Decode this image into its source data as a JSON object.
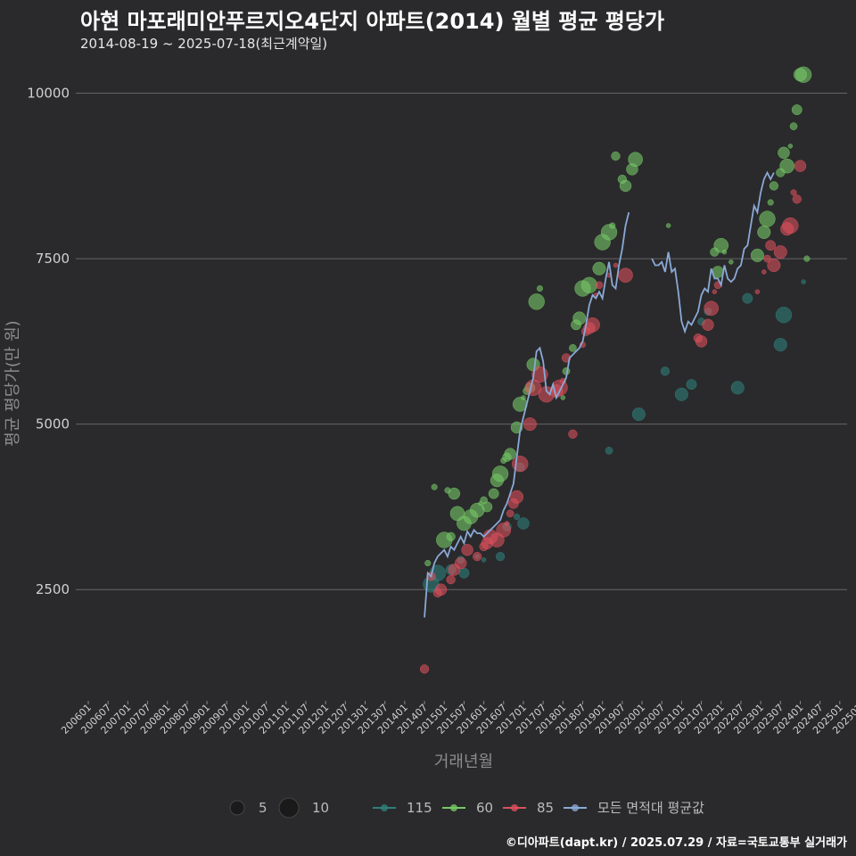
{
  "title": "아현 마포래미안푸르지오4단지 아파트(2014) 월별 평균 평당가",
  "subtitle": "2014-08-19 ~ 2025-07-18(최근계약일)",
  "caption": "©디아파트(dapt.kr) / 2025.07.29 / 자료=국토교통부 실거래가",
  "colors": {
    "background": "#2a2a2c",
    "grid": "#666666",
    "s115": "#2f7f7a",
    "s60": "#76c867",
    "s85": "#d9505c",
    "avg": "#8aa9d6"
  },
  "chart_data": {
    "type": "scatter",
    "title": "아현 마포래미안푸르지오4단지 아파트(2014) 월별 평균 평당가",
    "xlabel": "거래년월",
    "ylabel": "평균 평당가(만 원)",
    "ylim": [
      900,
      10600
    ],
    "yticks": [
      2500,
      5000,
      7500,
      10000
    ],
    "x_tick_labels": [
      "200601",
      "200607",
      "200701",
      "200707",
      "200801",
      "200807",
      "200901",
      "200907",
      "201001",
      "201007",
      "201101",
      "201107",
      "201201",
      "201207",
      "201301",
      "201307",
      "201401",
      "201407",
      "201501",
      "201507",
      "201601",
      "201607",
      "201701",
      "201707",
      "201801",
      "201807",
      "201901",
      "201907",
      "202001",
      "202007",
      "202101",
      "202107",
      "202201",
      "202207",
      "202301",
      "202307",
      "202401",
      "202407",
      "202501",
      "202507"
    ],
    "size_legend": {
      "labels": [
        "5",
        "10"
      ]
    },
    "legend": [
      {
        "key": "s115",
        "label": "115"
      },
      {
        "key": "s60",
        "label": "60"
      },
      {
        "key": "s85",
        "label": "85"
      },
      {
        "key": "avg",
        "label": "모든 면적대 평균값"
      }
    ],
    "series": [
      {
        "key": "s115",
        "name": "115",
        "points": [
          [
            104,
            2580
          ],
          [
            106,
            2750
          ],
          [
            110,
            2800
          ],
          [
            113,
            2950
          ],
          [
            114,
            2750
          ],
          [
            118,
            3000
          ],
          [
            120,
            2950
          ],
          [
            125,
            3000
          ],
          [
            127,
            3450
          ],
          [
            130,
            3600
          ],
          [
            131,
            4350
          ],
          [
            132,
            3500
          ],
          [
            158,
            4600
          ],
          [
            167,
            5150
          ],
          [
            175,
            5800
          ],
          [
            180,
            5450
          ],
          [
            183,
            5600
          ],
          [
            186,
            6550
          ],
          [
            188,
            6700
          ],
          [
            197,
            5550
          ],
          [
            200,
            6900
          ],
          [
            210,
            6200
          ],
          [
            211,
            6650
          ],
          [
            217,
            7150
          ]
        ]
      },
      {
        "key": "s60",
        "name": "60",
        "points": [
          [
            103,
            2900
          ],
          [
            105,
            4050
          ],
          [
            108,
            3250
          ],
          [
            109,
            4000
          ],
          [
            110,
            3300
          ],
          [
            111,
            3950
          ],
          [
            112,
            3650
          ],
          [
            114,
            3500
          ],
          [
            116,
            3600
          ],
          [
            118,
            3700
          ],
          [
            119,
            3800
          ],
          [
            120,
            3850
          ],
          [
            121,
            3750
          ],
          [
            123,
            3950
          ],
          [
            124,
            4150
          ],
          [
            125,
            4250
          ],
          [
            126,
            4450
          ],
          [
            127,
            4500
          ],
          [
            128,
            4550
          ],
          [
            130,
            4950
          ],
          [
            131,
            5300
          ],
          [
            132,
            5400
          ],
          [
            133,
            5500
          ],
          [
            134,
            5550
          ],
          [
            135,
            5900
          ],
          [
            136,
            6850
          ],
          [
            137,
            7050
          ],
          [
            144,
            5400
          ],
          [
            145,
            5800
          ],
          [
            147,
            6150
          ],
          [
            148,
            6500
          ],
          [
            149,
            6600
          ],
          [
            150,
            7050
          ],
          [
            152,
            7100
          ],
          [
            155,
            7350
          ],
          [
            156,
            7750
          ],
          [
            158,
            7900
          ],
          [
            159,
            8000
          ],
          [
            160,
            9050
          ],
          [
            162,
            8700
          ],
          [
            163,
            8600
          ],
          [
            165,
            8850
          ],
          [
            166,
            9000
          ],
          [
            176,
            8000
          ],
          [
            190,
            7600
          ],
          [
            191,
            7300
          ],
          [
            192,
            7700
          ],
          [
            193,
            7600
          ],
          [
            195,
            7450
          ],
          [
            203,
            7550
          ],
          [
            205,
            7900
          ],
          [
            206,
            8100
          ],
          [
            207,
            8350
          ],
          [
            208,
            8600
          ],
          [
            210,
            8800
          ],
          [
            211,
            9100
          ],
          [
            212,
            8900
          ],
          [
            213,
            9200
          ],
          [
            214,
            9500
          ],
          [
            215,
            9750
          ],
          [
            216,
            10280
          ],
          [
            217,
            10280
          ],
          [
            218,
            7500
          ]
        ]
      },
      {
        "key": "s85",
        "name": "85",
        "points": [
          [
            102,
            1300
          ],
          [
            104,
            2700
          ],
          [
            106,
            2450
          ],
          [
            107,
            2500
          ],
          [
            110,
            2650
          ],
          [
            111,
            2800
          ],
          [
            113,
            2900
          ],
          [
            115,
            3100
          ],
          [
            118,
            3000
          ],
          [
            120,
            3150
          ],
          [
            121,
            3200
          ],
          [
            122,
            3300
          ],
          [
            124,
            3250
          ],
          [
            126,
            3400
          ],
          [
            127,
            3500
          ],
          [
            128,
            3650
          ],
          [
            129,
            3800
          ],
          [
            130,
            3900
          ],
          [
            131,
            4400
          ],
          [
            134,
            5000
          ],
          [
            135,
            5550
          ],
          [
            137,
            5750
          ],
          [
            139,
            5450
          ],
          [
            142,
            5500
          ],
          [
            143,
            5550
          ],
          [
            144,
            5650
          ],
          [
            145,
            6000
          ],
          [
            147,
            4850
          ],
          [
            150,
            6200
          ],
          [
            151,
            6400
          ],
          [
            152,
            6450
          ],
          [
            153,
            6500
          ],
          [
            154,
            6950
          ],
          [
            155,
            7100
          ],
          [
            158,
            7250
          ],
          [
            160,
            7400
          ],
          [
            163,
            7250
          ],
          [
            185,
            6300
          ],
          [
            186,
            6250
          ],
          [
            188,
            6500
          ],
          [
            189,
            6750
          ],
          [
            190,
            7000
          ],
          [
            191,
            7100
          ],
          [
            203,
            7000
          ],
          [
            205,
            7300
          ],
          [
            206,
            7500
          ],
          [
            207,
            7700
          ],
          [
            208,
            7400
          ],
          [
            210,
            7600
          ],
          [
            212,
            7950
          ],
          [
            213,
            8000
          ],
          [
            214,
            8500
          ],
          [
            215,
            8400
          ],
          [
            216,
            8900
          ]
        ]
      }
    ],
    "average_line": {
      "name": "모든 면적대 평균값",
      "points": [
        [
          102,
          2080
        ],
        [
          103,
          2750
        ],
        [
          104,
          2700
        ],
        [
          105,
          2900
        ],
        [
          106,
          3000
        ],
        [
          107,
          3050
        ],
        [
          108,
          3100
        ],
        [
          109,
          3000
        ],
        [
          110,
          3150
        ],
        [
          111,
          3100
        ],
        [
          112,
          3200
        ],
        [
          113,
          3300
        ],
        [
          114,
          3200
        ],
        [
          115,
          3380
        ],
        [
          116,
          3300
        ],
        [
          117,
          3400
        ],
        [
          118,
          3350
        ],
        [
          119,
          3350
        ],
        [
          120,
          3300
        ],
        [
          121,
          3350
        ],
        [
          122,
          3400
        ],
        [
          123,
          3450
        ],
        [
          124,
          3500
        ],
        [
          125,
          3550
        ],
        [
          126,
          3700
        ],
        [
          127,
          3800
        ],
        [
          128,
          3950
        ],
        [
          129,
          4100
        ],
        [
          130,
          4500
        ],
        [
          131,
          4900
        ],
        [
          132,
          5100
        ],
        [
          133,
          5300
        ],
        [
          134,
          5500
        ],
        [
          135,
          5700
        ],
        [
          136,
          6100
        ],
        [
          137,
          6150
        ],
        [
          138,
          5950
        ],
        [
          139,
          5500
        ],
        [
          140,
          5450
        ],
        [
          141,
          5600
        ],
        [
          142,
          5400
        ],
        [
          143,
          5500
        ],
        [
          144,
          5600
        ],
        [
          145,
          5700
        ],
        [
          146,
          6000
        ],
        [
          147,
          6050
        ],
        [
          148,
          6100
        ],
        [
          149,
          6150
        ],
        [
          150,
          6250
        ],
        [
          151,
          6500
        ],
        [
          152,
          6800
        ],
        [
          153,
          6950
        ],
        [
          154,
          6900
        ],
        [
          155,
          7000
        ],
        [
          156,
          6900
        ],
        [
          157,
          7200
        ],
        [
          158,
          7450
        ],
        [
          159,
          7100
        ],
        [
          160,
          7050
        ],
        [
          161,
          7400
        ],
        [
          162,
          7650
        ],
        [
          163,
          8000
        ],
        [
          164,
          8200
        ],
        [
          171,
          7500
        ],
        [
          172,
          7400
        ],
        [
          173,
          7400
        ],
        [
          174,
          7450
        ],
        [
          175,
          7300
        ],
        [
          176,
          7600
        ],
        [
          177,
          7300
        ],
        [
          178,
          7350
        ],
        [
          179,
          7000
        ],
        [
          180,
          6550
        ],
        [
          181,
          6400
        ],
        [
          182,
          6550
        ],
        [
          183,
          6500
        ],
        [
          184,
          6600
        ],
        [
          185,
          6700
        ],
        [
          186,
          6950
        ],
        [
          187,
          7050
        ],
        [
          188,
          7000
        ],
        [
          189,
          7350
        ],
        [
          190,
          7200
        ],
        [
          191,
          7200
        ],
        [
          192,
          7100
        ],
        [
          193,
          7400
        ],
        [
          194,
          7200
        ],
        [
          195,
          7150
        ],
        [
          196,
          7200
        ],
        [
          197,
          7350
        ],
        [
          198,
          7400
        ],
        [
          199,
          7650
        ],
        [
          200,
          7700
        ],
        [
          201,
          8000
        ],
        [
          202,
          8300
        ],
        [
          203,
          8200
        ],
        [
          204,
          8500
        ],
        [
          205,
          8700
        ],
        [
          206,
          8800
        ],
        [
          207,
          8700
        ],
        [
          208,
          8800
        ]
      ]
    }
  }
}
